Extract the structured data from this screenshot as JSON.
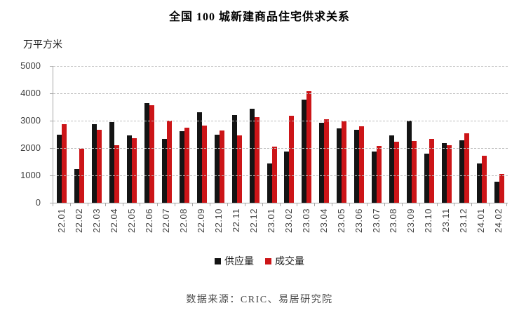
{
  "chart_data": {
    "type": "bar",
    "title": "全国 100 城新建商品住宅供求关系",
    "unit_label": "万平方米",
    "xlabel": "",
    "ylabel": "万平方米",
    "ylim": [
      0,
      5000
    ],
    "yticks": [
      0,
      1000,
      2000,
      3000,
      4000,
      5000
    ],
    "grid": "horizontal-dashed",
    "legend_position": "bottom-center",
    "categories": [
      "22.01",
      "22.02",
      "22.03",
      "22.04",
      "22.05",
      "22.06",
      "22.07",
      "22.08",
      "22.09",
      "22.10",
      "22.11",
      "22.12",
      "23.01",
      "23.02",
      "23.03",
      "23.04",
      "23.05",
      "23.06",
      "23.07",
      "23.08",
      "23.09",
      "23.10",
      "23.11",
      "23.12",
      "24.01",
      "24.02"
    ],
    "series": [
      {
        "name": "供应量",
        "color": "#141414",
        "values": [
          2480,
          1230,
          2860,
          2940,
          2470,
          3640,
          2330,
          2610,
          3310,
          2500,
          3210,
          3440,
          1440,
          1870,
          3770,
          2930,
          2710,
          2670,
          1880,
          2450,
          2990,
          1790,
          2190,
          2270,
          1440,
          760
        ]
      },
      {
        "name": "成交量",
        "color": "#cc1518",
        "values": [
          2860,
          1980,
          2670,
          2110,
          2370,
          3560,
          3010,
          2740,
          2820,
          2650,
          2460,
          3140,
          2050,
          3170,
          4070,
          3050,
          2980,
          2800,
          2070,
          2220,
          2250,
          2330,
          2100,
          2530,
          1710,
          1050
        ]
      }
    ]
  },
  "source_note": "数据来源：CRIC、易居研究院"
}
